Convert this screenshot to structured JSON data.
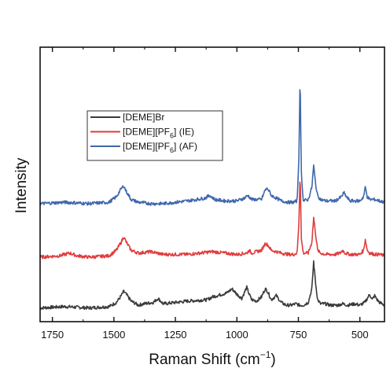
{
  "chart_data": {
    "type": "line",
    "title": "",
    "xlabel": "Raman Shift (cm",
    "xlabel_sup": "−1",
    "xlabel_close": ")",
    "ylabel": "Intensity",
    "x_reversed": true,
    "xlim": [
      1800,
      400
    ],
    "ylim": [
      0,
      10
    ],
    "x_ticks": [
      1750,
      1500,
      1250,
      1000,
      750,
      500
    ],
    "y_ticks_shown": false,
    "grid": false,
    "legend_position": "upper-left",
    "series": [
      {
        "name": "[DEME]Br",
        "name_parts": {
          "pre": "[DEME]Br",
          "sub": "",
          "post": ""
        },
        "color": "#3a3a3a",
        "x": [
          1800,
          1700,
          1600,
          1520,
          1490,
          1470,
          1460,
          1450,
          1430,
          1400,
          1380,
          1340,
          1320,
          1300,
          1250,
          1200,
          1120,
          1100,
          1060,
          1040,
          1020,
          1000,
          980,
          960,
          950,
          940,
          920,
          900,
          885,
          875,
          860,
          840,
          820,
          800,
          780,
          760,
          745,
          730,
          710,
          695,
          688,
          680,
          672,
          660,
          640,
          620,
          590,
          570,
          550,
          520,
          500,
          480,
          470,
          460,
          450,
          440,
          430,
          420,
          400
        ],
        "y": [
          0.5,
          0.55,
          0.5,
          0.55,
          0.7,
          0.95,
          1.1,
          1.0,
          0.75,
          0.6,
          0.65,
          0.7,
          0.85,
          0.65,
          0.7,
          0.75,
          0.8,
          0.9,
          1.0,
          1.05,
          1.2,
          1.0,
          0.85,
          1.25,
          1.0,
          0.8,
          0.75,
          0.9,
          1.2,
          1.1,
          0.8,
          0.95,
          0.7,
          0.6,
          0.6,
          0.65,
          0.6,
          0.6,
          0.7,
          1.2,
          2.2,
          1.4,
          0.8,
          0.65,
          0.65,
          0.6,
          0.6,
          0.65,
          0.6,
          0.65,
          0.6,
          0.7,
          0.85,
          1.0,
          0.8,
          0.95,
          0.8,
          0.7,
          0.6
        ]
      },
      {
        "name": "[DEME][PF6] (IE)",
        "name_parts": {
          "pre": "[DEME][PF",
          "sub": "6",
          "post": "] (IE)"
        },
        "color": "#e03c3c",
        "x": [
          1800,
          1720,
          1680,
          1650,
          1600,
          1520,
          1490,
          1470,
          1460,
          1450,
          1430,
          1400,
          1350,
          1300,
          1250,
          1200,
          1150,
          1100,
          1050,
          1000,
          960,
          950,
          940,
          900,
          885,
          875,
          860,
          820,
          790,
          770,
          755,
          748,
          743,
          738,
          730,
          710,
          695,
          688,
          680,
          672,
          660,
          640,
          600,
          580,
          570,
          560,
          540,
          500,
          485,
          478,
          470,
          460,
          440,
          420,
          400
        ],
        "y": [
          2.35,
          2.4,
          2.5,
          2.4,
          2.35,
          2.4,
          2.6,
          2.9,
          3.1,
          2.9,
          2.6,
          2.5,
          2.55,
          2.45,
          2.45,
          2.45,
          2.5,
          2.55,
          2.5,
          2.45,
          2.5,
          2.6,
          2.5,
          2.6,
          2.85,
          2.8,
          2.6,
          2.5,
          2.45,
          2.45,
          2.5,
          3.6,
          5.5,
          3.0,
          2.5,
          2.5,
          2.9,
          3.8,
          3.2,
          2.6,
          2.5,
          2.45,
          2.45,
          2.5,
          2.6,
          2.5,
          2.45,
          2.45,
          2.6,
          3.0,
          2.6,
          2.5,
          2.45,
          2.45,
          2.4
        ]
      },
      {
        "name": "[DEME][PF6] (AF)",
        "name_parts": {
          "pre": "[DEME][PF",
          "sub": "6",
          "post": "] (AF)"
        },
        "color": "#3f67ac",
        "x": [
          1800,
          1700,
          1600,
          1520,
          1490,
          1470,
          1460,
          1450,
          1430,
          1400,
          1350,
          1300,
          1250,
          1200,
          1130,
          1110,
          1090,
          1050,
          1000,
          970,
          955,
          940,
          900,
          885,
          875,
          860,
          820,
          790,
          770,
          755,
          748,
          743,
          738,
          730,
          710,
          695,
          688,
          680,
          672,
          660,
          640,
          600,
          575,
          565,
          555,
          540,
          500,
          485,
          478,
          470,
          460,
          440,
          420,
          400
        ],
        "y": [
          4.3,
          4.35,
          4.3,
          4.35,
          4.55,
          4.85,
          4.95,
          4.75,
          4.45,
          4.35,
          4.3,
          4.3,
          4.35,
          4.4,
          4.5,
          4.6,
          4.45,
          4.4,
          4.4,
          4.5,
          4.6,
          4.45,
          4.45,
          4.8,
          4.85,
          4.6,
          4.4,
          4.35,
          4.35,
          4.4,
          6.0,
          9.0,
          5.4,
          4.4,
          4.45,
          4.9,
          5.7,
          5.0,
          4.6,
          4.45,
          4.4,
          4.4,
          4.55,
          4.7,
          4.55,
          4.4,
          4.4,
          4.55,
          4.9,
          4.55,
          4.45,
          4.45,
          4.4,
          4.35
        ]
      }
    ]
  }
}
